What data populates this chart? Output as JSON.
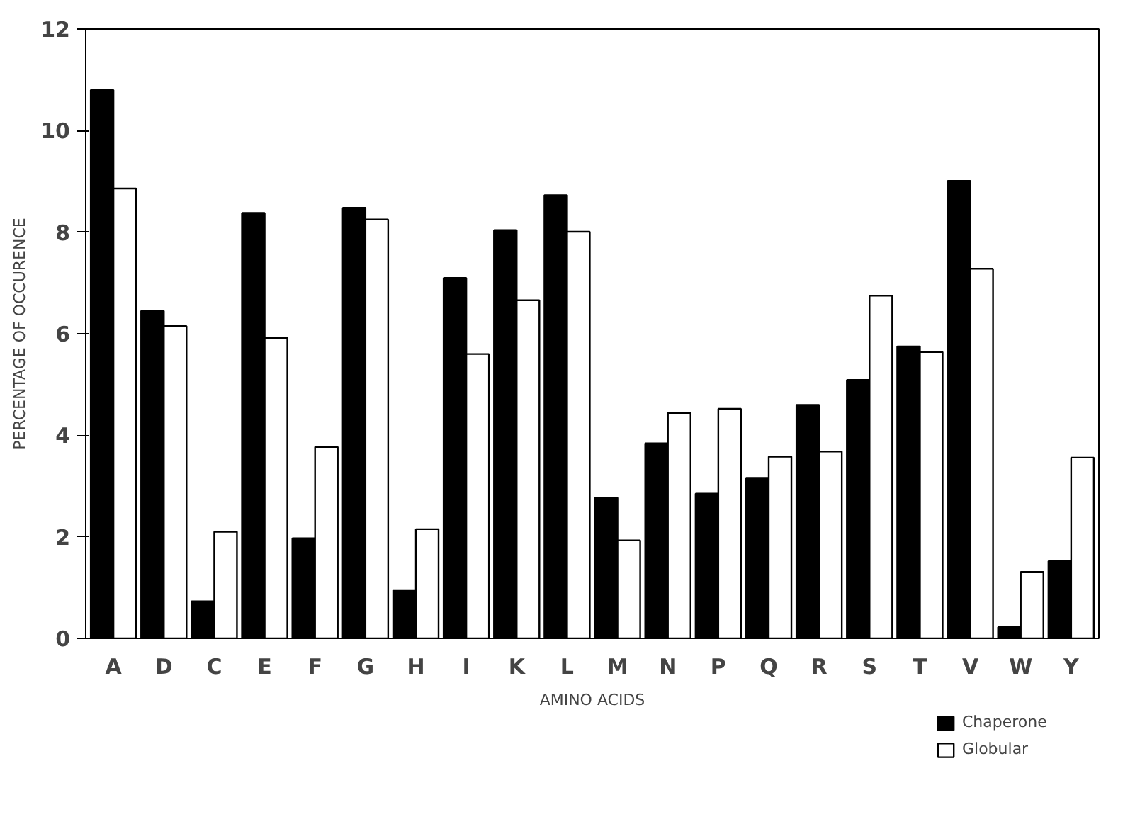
{
  "chart_data": {
    "type": "bar",
    "xlabel": "AMINO ACIDS",
    "ylabel": "PERCENTAGE OF OCCURENCE",
    "categories": [
      "A",
      "D",
      "C",
      "E",
      "F",
      "G",
      "H",
      "I",
      "K",
      "L",
      "M",
      "N",
      "P",
      "Q",
      "R",
      "S",
      "T",
      "V",
      "W",
      "Y"
    ],
    "series": [
      {
        "name": "Chaperone",
        "color": "#000000",
        "values": [
          10.8,
          6.45,
          0.73,
          8.38,
          1.97,
          8.48,
          0.95,
          7.1,
          8.04,
          8.73,
          2.77,
          3.84,
          2.85,
          3.16,
          4.6,
          5.09,
          5.75,
          9.01,
          0.22,
          1.52
        ]
      },
      {
        "name": "Globular",
        "color": "#ffffff",
        "values": [
          8.86,
          6.15,
          2.1,
          5.92,
          3.77,
          8.25,
          2.15,
          5.6,
          6.66,
          8.01,
          1.93,
          4.44,
          4.52,
          3.58,
          3.68,
          6.75,
          5.64,
          7.28,
          1.31,
          3.56
        ]
      }
    ],
    "ylim": [
      0,
      12
    ],
    "yticks": [
      0,
      2,
      4,
      6,
      8,
      10,
      12
    ],
    "grid": false,
    "legend": "bottom right"
  }
}
